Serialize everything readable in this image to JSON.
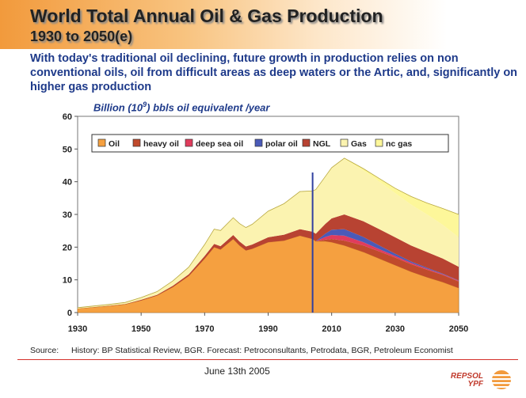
{
  "slide": {
    "title": "World Total Annual Oil & Gas Production",
    "subtitle": "1930 to 2050(e)",
    "intro": "With today's traditional oil declining, future growth in production relies on non conventional oils, oil from difficult areas as deep waters or the Artic, and, significantly on higher gas production",
    "unit_prefix": "Billion (10",
    "unit_exp": "9",
    "unit_suffix": ") bbls oil equivalent /year",
    "source_key": "Source:",
    "source_text": "History: BP Statistical Review, BGR.  Forecast: Petroconsultants, Petrodata, BGR, Petroleum Economist",
    "date": "June 13th 2005",
    "logo_line1": "REPSOL",
    "logo_line2": "YPF"
  },
  "colors": {
    "accent_red": "#d4302a",
    "brand_orange": "#f29a3c",
    "divider_line": "#3040a0"
  },
  "chart_data": {
    "type": "area",
    "stacked": true,
    "xlim": [
      1930,
      2050
    ],
    "ylim": [
      0,
      60
    ],
    "x_ticks": [
      "1930",
      "1950",
      "1970",
      "1990",
      "2010",
      "2030",
      "2050"
    ],
    "y_ticks": [
      "0",
      "10",
      "20",
      "30",
      "40",
      "50",
      "60"
    ],
    "grid": false,
    "legend_position": "top-left",
    "divider_year": 2004,
    "x": [
      1930,
      1940,
      1945,
      1950,
      1955,
      1960,
      1965,
      1970,
      1973,
      1975,
      1979,
      1981,
      1983,
      1985,
      1990,
      1995,
      2000,
      2004,
      2005,
      2008,
      2010,
      2014,
      2020,
      2025,
      2030,
      2035,
      2040,
      2045,
      2050
    ],
    "series": [
      {
        "name": "Oil",
        "color": "#f5a040",
        "values": [
          1.2,
          2,
          2.5,
          3.7,
          5.2,
          7.8,
          11.2,
          16.5,
          20,
          19.3,
          22.5,
          20.5,
          19,
          19.5,
          21.5,
          22,
          23.5,
          22.5,
          21.8,
          21.8,
          21.5,
          20.5,
          18.5,
          16.5,
          14.5,
          12.5,
          10.8,
          9.3,
          7.5
        ]
      },
      {
        "name": "heavy oil",
        "color": "#c04a2c",
        "values": [
          0,
          0,
          0,
          0,
          0,
          0,
          0,
          0,
          0,
          0,
          0,
          0,
          0,
          0,
          0,
          0,
          0,
          0,
          0,
          0.5,
          1,
          1.5,
          2,
          2.2,
          2.3,
          2.3,
          2.3,
          2.2,
          2
        ]
      },
      {
        "name": "deep sea oil",
        "color": "#e03c5c",
        "values": [
          0,
          0,
          0,
          0,
          0,
          0,
          0,
          0,
          0,
          0,
          0,
          0,
          0,
          0,
          0,
          0,
          0,
          0,
          0,
          0.8,
          1.2,
          1.5,
          1,
          0.7,
          0.5,
          0.4,
          0.3,
          0.2,
          0.2
        ]
      },
      {
        "name": "polar oil",
        "color": "#4a5ab8",
        "values": [
          0,
          0,
          0,
          0,
          0,
          0,
          0,
          0,
          0,
          0,
          0,
          0,
          0,
          0,
          0,
          0,
          0,
          0,
          0,
          1,
          1.6,
          2,
          1.6,
          1.1,
          0.7,
          0.4,
          0.3,
          0.2,
          0.1
        ]
      },
      {
        "name": "NGL",
        "color": "#b84332",
        "values": [
          0,
          0.1,
          0.1,
          0.2,
          0.2,
          0.4,
          0.5,
          0.8,
          1,
          1,
          1.2,
          1.2,
          1.2,
          1.3,
          1.5,
          1.8,
          2,
          2.2,
          2.3,
          3,
          3.5,
          4.5,
          4.8,
          5,
          5,
          4.9,
          4.8,
          4.6,
          4.2
        ]
      },
      {
        "name": "Gas",
        "color": "#fbf3b0",
        "values": [
          0.3,
          0.4,
          0.5,
          0.7,
          1,
          1.5,
          2.2,
          3.5,
          4.5,
          4.8,
          5.3,
          5.5,
          5.8,
          6.2,
          8,
          9.5,
          11.5,
          12.5,
          13.5,
          14.5,
          15.5,
          17,
          15.5,
          14.5,
          13.5,
          12.5,
          11.5,
          10.3,
          9
        ]
      },
      {
        "name": "nc gas",
        "color": "#fdf79a",
        "values": [
          0,
          0,
          0,
          0,
          0,
          0,
          0,
          0,
          0,
          0,
          0,
          0,
          0,
          0,
          0,
          0,
          0,
          0,
          0,
          0,
          0,
          0.2,
          0.6,
          1,
          1.5,
          2.5,
          3.5,
          5,
          7
        ]
      }
    ]
  }
}
